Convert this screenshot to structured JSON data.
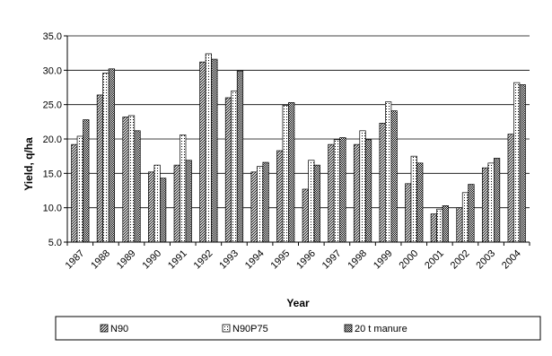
{
  "chart_data": {
    "type": "bar",
    "title": "",
    "xlabel": "Year",
    "ylabel": "Yield, q/ha",
    "ylim": [
      5.0,
      35.0
    ],
    "yticks": [
      "5.0",
      "10.0",
      "15.0",
      "20.0",
      "25.0",
      "30.0",
      "35.0"
    ],
    "grid": true,
    "legend_position": "bottom",
    "categories": [
      "1987",
      "1988",
      "1989",
      "1990",
      "1991",
      "1992",
      "1993",
      "1994",
      "1995",
      "1996",
      "1997",
      "1998",
      "1999",
      "2000",
      "2001",
      "2002",
      "2003",
      "2004"
    ],
    "series": [
      {
        "name": "N90",
        "pattern": "diagonal-hatch",
        "values": [
          19.2,
          26.4,
          23.2,
          15.2,
          16.2,
          31.2,
          26.0,
          15.2,
          18.3,
          12.7,
          19.2,
          19.2,
          22.3,
          13.5,
          9.1,
          10.0,
          15.8,
          20.7
        ]
      },
      {
        "name": "N90P75",
        "pattern": "dotted",
        "values": [
          20.4,
          29.6,
          23.4,
          16.2,
          20.6,
          32.4,
          27.0,
          16.0,
          24.9,
          16.9,
          19.9,
          21.2,
          25.4,
          17.5,
          9.8,
          12.2,
          16.5,
          28.2
        ]
      },
      {
        "name": "20 t manure",
        "pattern": "checker",
        "values": [
          22.8,
          30.2,
          21.2,
          14.3,
          16.9,
          31.6,
          29.9,
          16.6,
          25.3,
          16.2,
          20.2,
          19.9,
          24.1,
          16.5,
          10.3,
          13.4,
          17.2,
          27.9
        ]
      }
    ]
  }
}
